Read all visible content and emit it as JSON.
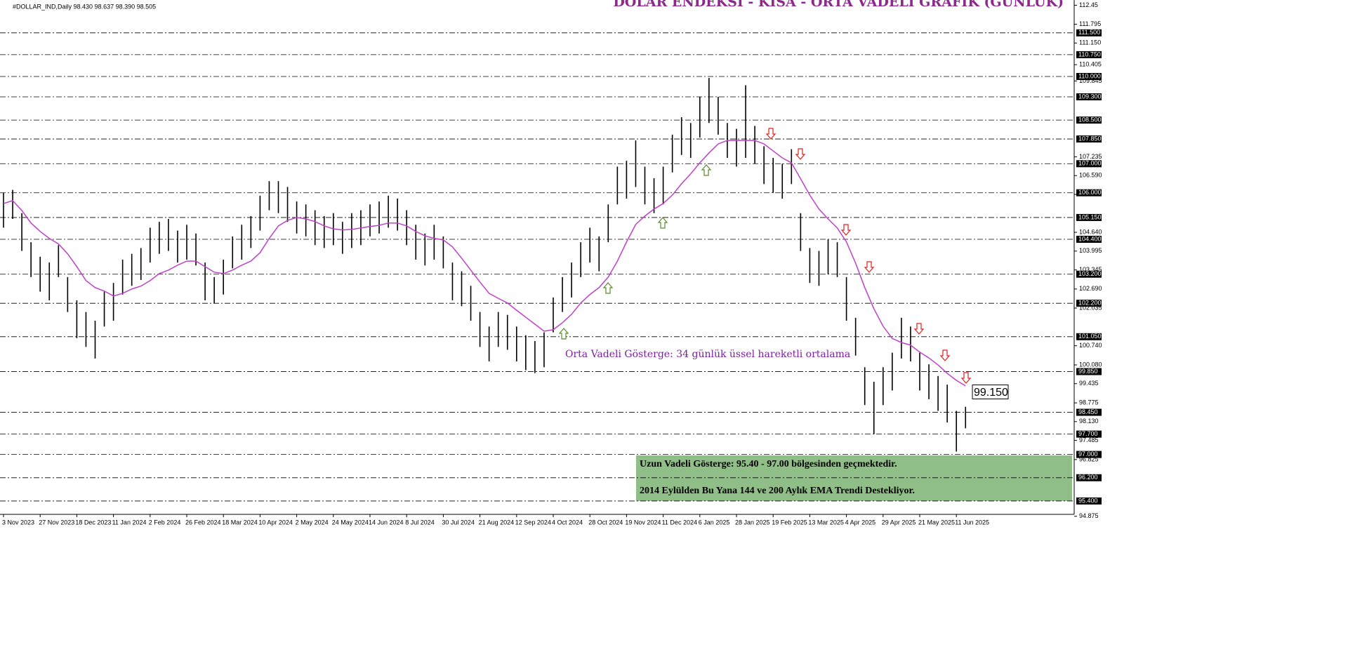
{
  "chart_data": {
    "type": "ohlc",
    "header": "#DOLLAR_IND,Daily  98.430 98.637 98.390 98.505",
    "title": "DOLAR ENDEKSİ - KISA - ORTA VADELİ GRAFİK (GÜNLÜK)",
    "annotation": "Orta Vadeli Gösterge: 34 günlük üssel hareketli ortalama",
    "note_lines": [
      "Uzun Vadeli Gösterge: 95.40 - 97.00 bölgesinden geçmektedir.",
      "2014 Eylülden Bu Yana 144 ve 200 Aylık EMA Trendi Destekliyor."
    ],
    "ema_label": {
      "value": 99.15,
      "label": "99.150"
    },
    "color": "#000000",
    "ema_color": "#c040c8",
    "categories": [
      "3 Nov 2023",
      null,
      null,
      null,
      "27 Nov 2023",
      null,
      null,
      null,
      "18 Dec 2023",
      null,
      null,
      null,
      "11 Jan 2024",
      null,
      null,
      null,
      "2 Feb 2024",
      null,
      null,
      null,
      "26 Feb 2024",
      null,
      null,
      null,
      "18 Mar 2024",
      null,
      null,
      null,
      "10 Apr 2024",
      null,
      null,
      null,
      "2 May 2024",
      null,
      null,
      null,
      "24 May 2024",
      null,
      null,
      null,
      "14 Jun 2024",
      null,
      null,
      null,
      "8 Jul 2024",
      null,
      null,
      null,
      "30 Jul 2024",
      null,
      null,
      null,
      "21 Aug 2024",
      null,
      null,
      null,
      "12 Sep 2024",
      null,
      null,
      null,
      "4 Oct 2024",
      null,
      null,
      null,
      "28 Oct 2024",
      null,
      null,
      null,
      "19 Nov 2024",
      null,
      null,
      null,
      "11 Dec 2024",
      null,
      null,
      null,
      "6 Jan 2025",
      null,
      null,
      null,
      "28 Jan 2025",
      null,
      null,
      null,
      "19 Feb 2025",
      null,
      null,
      null,
      "13 Mar 2025",
      null,
      null,
      null,
      "4 Apr 2025",
      null,
      null,
      null,
      "29 Apr 2025",
      null,
      null,
      null,
      "21 May 2025",
      null,
      null,
      null,
      "11 Jun 2025",
      null
    ],
    "high": [
      106.0,
      106.1,
      105.3,
      104.3,
      103.8,
      103.6,
      104.2,
      103.1,
      102.3,
      101.9,
      101.6,
      102.6,
      102.9,
      103.7,
      103.9,
      104.1,
      104.8,
      105.0,
      105.1,
      104.7,
      104.9,
      104.6,
      103.6,
      103.1,
      103.7,
      104.5,
      104.9,
      105.2,
      105.9,
      106.4,
      106.4,
      106.2,
      105.7,
      105.6,
      105.4,
      105.2,
      105.3,
      105.0,
      105.3,
      105.4,
      105.6,
      105.7,
      105.9,
      105.8,
      105.4,
      104.9,
      104.6,
      104.9,
      104.5,
      103.6,
      103.3,
      102.8,
      101.9,
      101.4,
      101.9,
      101.8,
      101.4,
      101.1,
      100.9,
      101.2,
      102.4,
      103.1,
      103.6,
      104.3,
      104.8,
      104.5,
      105.6,
      106.9,
      107.1,
      107.8,
      106.9,
      106.5,
      106.9,
      108.0,
      108.6,
      108.4,
      109.3,
      109.95,
      109.3,
      108.4,
      108.2,
      109.7,
      108.3,
      107.6,
      107.2,
      107.0,
      107.5,
      105.3,
      104.1,
      104.0,
      104.4,
      104.3,
      103.1,
      101.7,
      100.0,
      99.5,
      100.0,
      100.5,
      101.7,
      101.4,
      100.5,
      100.1,
      99.7,
      99.4,
      98.5,
      98.64
    ],
    "low": [
      104.8,
      105.1,
      104.0,
      103.1,
      102.6,
      102.3,
      103.1,
      101.9,
      101.0,
      100.7,
      100.3,
      101.4,
      101.6,
      102.5,
      102.8,
      103.0,
      103.6,
      103.9,
      104.0,
      103.6,
      103.7,
      103.5,
      102.3,
      102.2,
      102.5,
      103.4,
      103.7,
      104.1,
      104.7,
      105.4,
      105.3,
      105.0,
      104.6,
      104.5,
      104.2,
      104.1,
      104.2,
      103.9,
      104.1,
      104.2,
      104.5,
      104.6,
      104.8,
      104.7,
      104.2,
      103.7,
      103.5,
      103.7,
      103.4,
      102.3,
      102.1,
      101.6,
      100.7,
      100.2,
      100.7,
      100.6,
      100.2,
      99.9,
      99.8,
      100.0,
      101.2,
      101.9,
      102.4,
      103.1,
      103.6,
      103.3,
      104.3,
      105.6,
      105.8,
      106.2,
      105.6,
      105.3,
      105.6,
      106.7,
      107.3,
      107.2,
      107.9,
      108.4,
      108.0,
      107.2,
      106.9,
      107.2,
      107.0,
      106.3,
      106.0,
      105.8,
      106.3,
      104.0,
      102.9,
      102.8,
      103.2,
      103.1,
      101.6,
      100.4,
      98.7,
      97.7,
      98.7,
      99.2,
      100.3,
      100.2,
      99.2,
      98.9,
      98.5,
      98.1,
      97.1,
      97.9
    ],
    "ema": [
      105.63,
      105.73,
      105.39,
      104.96,
      104.67,
      104.43,
      104.24,
      103.9,
      103.46,
      102.98,
      102.74,
      102.62,
      102.45,
      102.54,
      102.69,
      102.79,
      102.98,
      103.22,
      103.34,
      103.51,
      103.65,
      103.65,
      103.46,
      103.27,
      103.22,
      103.34,
      103.51,
      103.65,
      103.94,
      104.43,
      104.86,
      105.05,
      105.15,
      105.1,
      105.01,
      104.86,
      104.76,
      104.72,
      104.74,
      104.79,
      104.84,
      104.88,
      104.96,
      104.96,
      104.86,
      104.67,
      104.52,
      104.43,
      104.38,
      104.14,
      103.75,
      103.34,
      102.93,
      102.54,
      102.37,
      102.21,
      101.96,
      101.72,
      101.48,
      101.24,
      101.29,
      101.53,
      101.82,
      102.21,
      102.5,
      102.74,
      103.1,
      103.65,
      104.31,
      104.91,
      105.2,
      105.44,
      105.63,
      105.92,
      106.31,
      106.65,
      107.03,
      107.37,
      107.68,
      107.8,
      107.8,
      107.8,
      107.8,
      107.68,
      107.44,
      107.2,
      107.03,
      106.48,
      105.92,
      105.44,
      105.1,
      104.79,
      104.31,
      103.58,
      102.74,
      102.01,
      101.41,
      100.99,
      100.85,
      100.76,
      100.52,
      100.32,
      100.08,
      99.79,
      99.55,
      99.36
    ],
    "ylim": [
      94.94,
      112.63
    ],
    "yticks": [
      112.45,
      111.795,
      {
        "value": 111.15,
        "label": "111.150"
      },
      110.405,
      109.845,
      107.235,
      {
        "value": 106.59,
        "label": "106.590"
      },
      105.945,
      {
        "value": 104.64,
        "label": "104.640"
      },
      103.995,
      103.345,
      {
        "value": 102.69,
        "label": "102.690"
      },
      102.035,
      {
        "value": 100.74,
        "label": "100.740"
      },
      {
        "value": 100.08,
        "label": "100.080"
      },
      99.435,
      98.775,
      {
        "value": 98.13,
        "label": "98.130"
      },
      97.485,
      96.825,
      94.875
    ],
    "levels": [
      {
        "value": 111.5,
        "label": "111.500"
      },
      {
        "value": 110.75,
        "label": "110.750"
      },
      {
        "value": 110.0,
        "label": "110.000"
      },
      {
        "value": 109.3,
        "label": "109.300"
      },
      {
        "value": 108.5,
        "label": "108.500"
      },
      {
        "value": 107.85,
        "label": "107.850"
      },
      {
        "value": 107.0,
        "label": "107.000"
      },
      {
        "value": 106.0,
        "label": "106.000"
      },
      {
        "value": 105.15,
        "label": "105.150"
      },
      {
        "value": 104.4,
        "label": "104.400"
      },
      {
        "value": 103.2,
        "label": "103.200"
      },
      {
        "value": 102.2,
        "label": "102.200"
      },
      {
        "value": 101.05,
        "label": "101.050"
      },
      {
        "value": 99.85,
        "label": "99.850"
      },
      {
        "value": 98.45,
        "label": "98.450"
      },
      {
        "value": 97.7,
        "label": "97.700"
      },
      {
        "value": 97.0,
        "label": "97.000"
      },
      {
        "value": 96.2,
        "label": "96.200"
      },
      {
        "value": 95.4,
        "label": "95.400"
      }
    ]
  }
}
